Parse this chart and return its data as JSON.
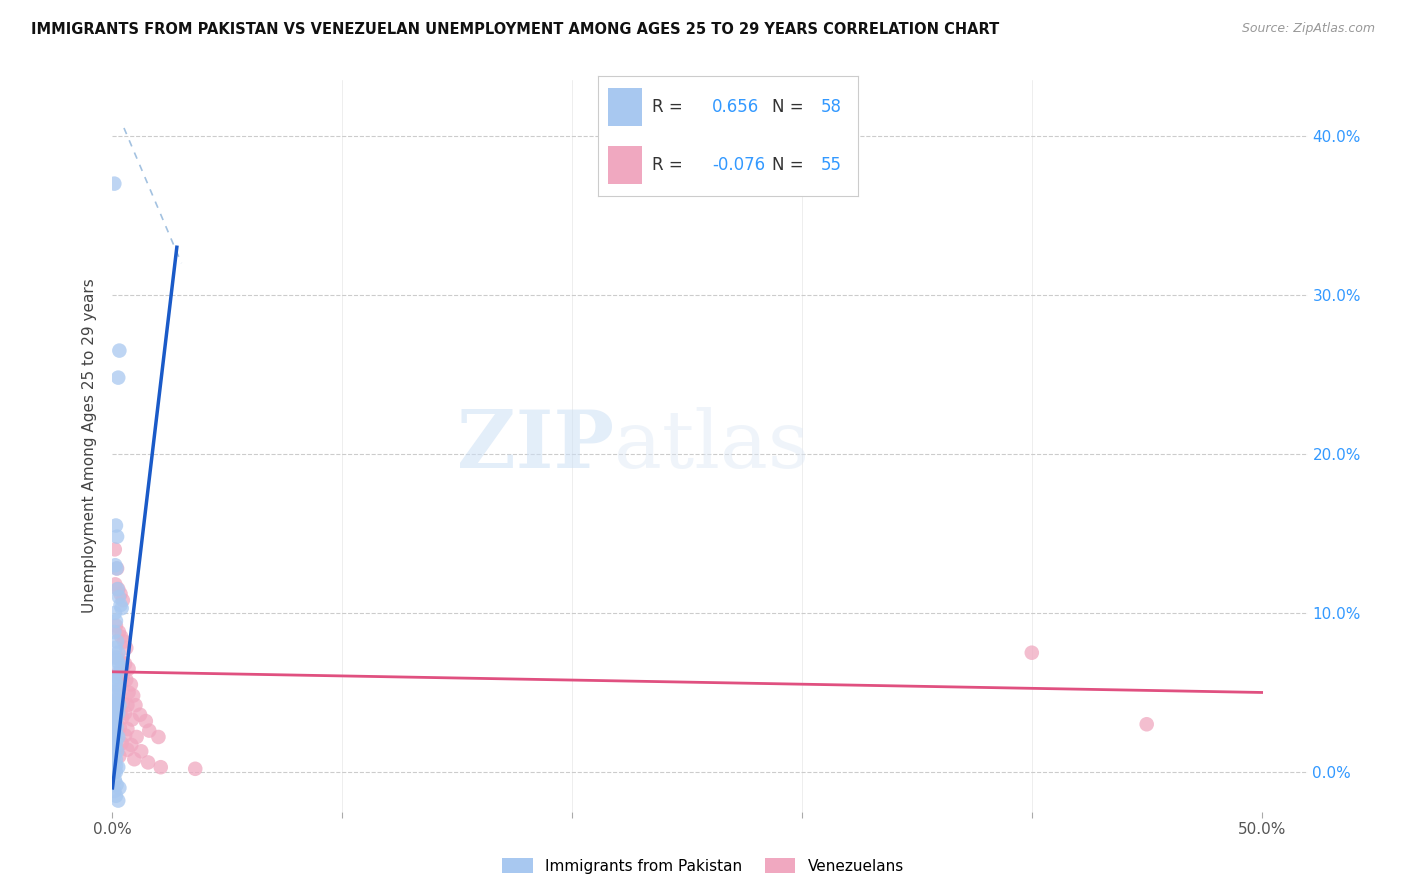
{
  "title": "IMMIGRANTS FROM PAKISTAN VS VENEZUELAN UNEMPLOYMENT AMONG AGES 25 TO 29 YEARS CORRELATION CHART",
  "source": "Source: ZipAtlas.com",
  "ylabel": "Unemployment Among Ages 25 to 29 years",
  "xlim": [
    0.0,
    0.52
  ],
  "ylim": [
    -0.025,
    0.435
  ],
  "yticks": [
    0.0,
    0.1,
    0.2,
    0.3,
    0.4
  ],
  "ytick_labels_right": [
    "0.0%",
    "10.0%",
    "20.0%",
    "30.0%",
    "40.0%"
  ],
  "xticks": [
    0.0,
    0.1,
    0.2,
    0.3,
    0.4,
    0.5
  ],
  "xtick_labels": [
    "0.0%",
    "",
    "",
    "",
    "",
    "50.0%"
  ],
  "pakistan_R": 0.656,
  "pakistan_N": 58,
  "venezuela_R": -0.076,
  "venezuela_N": 55,
  "pakistan_color": "#a8c8f0",
  "pakistan_line_color": "#1a5ac8",
  "venezuela_color": "#f0a8c0",
  "venezuela_line_color": "#e05080",
  "legend_label_pakistan": "Immigrants from Pakistan",
  "legend_label_venezuela": "Venezuelans",
  "watermark_zip": "ZIP",
  "watermark_atlas": "atlas",
  "pakistan_points": [
    [
      0.0008,
      0.37
    ],
    [
      0.003,
      0.265
    ],
    [
      0.0025,
      0.248
    ],
    [
      0.0015,
      0.155
    ],
    [
      0.002,
      0.148
    ],
    [
      0.0012,
      0.13
    ],
    [
      0.0018,
      0.128
    ],
    [
      0.0022,
      0.115
    ],
    [
      0.0028,
      0.11
    ],
    [
      0.0035,
      0.105
    ],
    [
      0.004,
      0.103
    ],
    [
      0.001,
      0.1
    ],
    [
      0.0015,
      0.095
    ],
    [
      0.0008,
      0.088
    ],
    [
      0.002,
      0.082
    ],
    [
      0.0012,
      0.078
    ],
    [
      0.0025,
      0.075
    ],
    [
      0.001,
      0.072
    ],
    [
      0.0018,
      0.07
    ],
    [
      0.003,
      0.068
    ],
    [
      0.0038,
      0.065
    ],
    [
      0.0008,
      0.062
    ],
    [
      0.0015,
      0.06
    ],
    [
      0.001,
      0.058
    ],
    [
      0.002,
      0.055
    ],
    [
      0.0028,
      0.053
    ],
    [
      0.0008,
      0.05
    ],
    [
      0.0015,
      0.048
    ],
    [
      0.001,
      0.045
    ],
    [
      0.002,
      0.043
    ],
    [
      0.003,
      0.042
    ],
    [
      0.0008,
      0.04
    ],
    [
      0.0015,
      0.038
    ],
    [
      0.0025,
      0.037
    ],
    [
      0.0008,
      0.035
    ],
    [
      0.0015,
      0.033
    ],
    [
      0.001,
      0.03
    ],
    [
      0.0018,
      0.028
    ],
    [
      0.0008,
      0.025
    ],
    [
      0.0015,
      0.023
    ],
    [
      0.0025,
      0.022
    ],
    [
      0.0008,
      0.02
    ],
    [
      0.0015,
      0.018
    ],
    [
      0.001,
      0.015
    ],
    [
      0.002,
      0.013
    ],
    [
      0.0008,
      0.01
    ],
    [
      0.0015,
      0.008
    ],
    [
      0.0008,
      0.005
    ],
    [
      0.0015,
      0.004
    ],
    [
      0.0025,
      0.003
    ],
    [
      0.0008,
      0.0
    ],
    [
      0.0015,
      -0.0
    ],
    [
      0.001,
      -0.005
    ],
    [
      0.0018,
      -0.008
    ],
    [
      0.003,
      -0.01
    ],
    [
      0.0008,
      -0.012
    ],
    [
      0.0015,
      -0.015
    ],
    [
      0.0025,
      -0.018
    ]
  ],
  "venezuela_points": [
    [
      0.001,
      0.14
    ],
    [
      0.002,
      0.128
    ],
    [
      0.0012,
      0.118
    ],
    [
      0.0025,
      0.115
    ],
    [
      0.0035,
      0.112
    ],
    [
      0.0045,
      0.108
    ],
    [
      0.0015,
      0.092
    ],
    [
      0.0028,
      0.088
    ],
    [
      0.0038,
      0.085
    ],
    [
      0.005,
      0.082
    ],
    [
      0.006,
      0.078
    ],
    [
      0.002,
      0.072
    ],
    [
      0.0035,
      0.07
    ],
    [
      0.0055,
      0.068
    ],
    [
      0.007,
      0.065
    ],
    [
      0.0025,
      0.062
    ],
    [
      0.0045,
      0.06
    ],
    [
      0.006,
      0.058
    ],
    [
      0.008,
      0.055
    ],
    [
      0.003,
      0.052
    ],
    [
      0.007,
      0.05
    ],
    [
      0.009,
      0.048
    ],
    [
      0.002,
      0.045
    ],
    [
      0.0045,
      0.043
    ],
    [
      0.0065,
      0.042
    ],
    [
      0.01,
      0.042
    ],
    [
      0.0015,
      0.04
    ],
    [
      0.0035,
      0.038
    ],
    [
      0.0055,
      0.037
    ],
    [
      0.012,
      0.036
    ],
    [
      0.0015,
      0.035
    ],
    [
      0.0042,
      0.034
    ],
    [
      0.0085,
      0.033
    ],
    [
      0.0145,
      0.032
    ],
    [
      0.0012,
      0.03
    ],
    [
      0.0032,
      0.028
    ],
    [
      0.0065,
      0.027
    ],
    [
      0.016,
      0.026
    ],
    [
      0.0012,
      0.025
    ],
    [
      0.0055,
      0.023
    ],
    [
      0.0105,
      0.022
    ],
    [
      0.02,
      0.022
    ],
    [
      0.0015,
      0.02
    ],
    [
      0.004,
      0.018
    ],
    [
      0.0082,
      0.017
    ],
    [
      0.002,
      0.015
    ],
    [
      0.0065,
      0.014
    ],
    [
      0.0125,
      0.013
    ],
    [
      0.003,
      0.01
    ],
    [
      0.0095,
      0.008
    ],
    [
      0.0155,
      0.006
    ],
    [
      0.021,
      0.003
    ],
    [
      0.036,
      0.002
    ],
    [
      0.4,
      0.075
    ],
    [
      0.45,
      0.03
    ]
  ],
  "pak_line_x0": 0.0,
  "pak_line_x1": 0.028,
  "pak_line_y0": -0.01,
  "pak_line_y1": 0.33,
  "ven_line_x0": 0.0,
  "ven_line_x1": 0.5,
  "ven_line_y0": 0.063,
  "ven_line_y1": 0.05,
  "dash_line_x0": 0.005,
  "dash_line_x1": 0.03,
  "dash_line_y0": 0.405,
  "dash_line_y1": 0.32
}
